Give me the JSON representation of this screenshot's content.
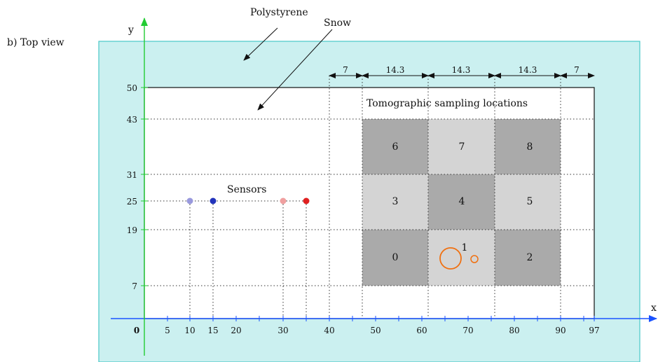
{
  "figure": {
    "view_label": "b) Top view",
    "label_polystyrene": "Polystyrene",
    "label_snow": "Snow",
    "label_sensors": "Sensors",
    "label_sampling": "Tomographic sampling locations",
    "axis_x_name": "x",
    "axis_y_name": "y",
    "x_ticks": [
      "0",
      "5",
      "10",
      "15",
      "20",
      "30",
      "40",
      "50",
      "60",
      "70",
      "80",
      "90",
      "97"
    ],
    "y_ticks": [
      "50",
      "43",
      "31",
      "25",
      "19",
      "7"
    ],
    "dimensions": [
      "7",
      "14.3",
      "14.3",
      "14.3",
      "7"
    ],
    "cells": [
      "0",
      "1",
      "2",
      "3",
      "4",
      "5",
      "6",
      "7",
      "8"
    ],
    "colors": {
      "polystyrene": "#cbf0f0",
      "polystyrene_border": "#49c9c9",
      "snow": "#ffffff",
      "cell_dark": "#aaaaaa",
      "cell_light": "#d4d4d4",
      "x_axis": "#1a52ff",
      "y_axis": "#22cc33",
      "sensor_blue_faint": "#9999dd",
      "sensor_blue": "#2233bb",
      "sensor_red_faint": "#f0a0a0",
      "sensor_red": "#e02020",
      "marker_circle": "#f07010"
    }
  }
}
